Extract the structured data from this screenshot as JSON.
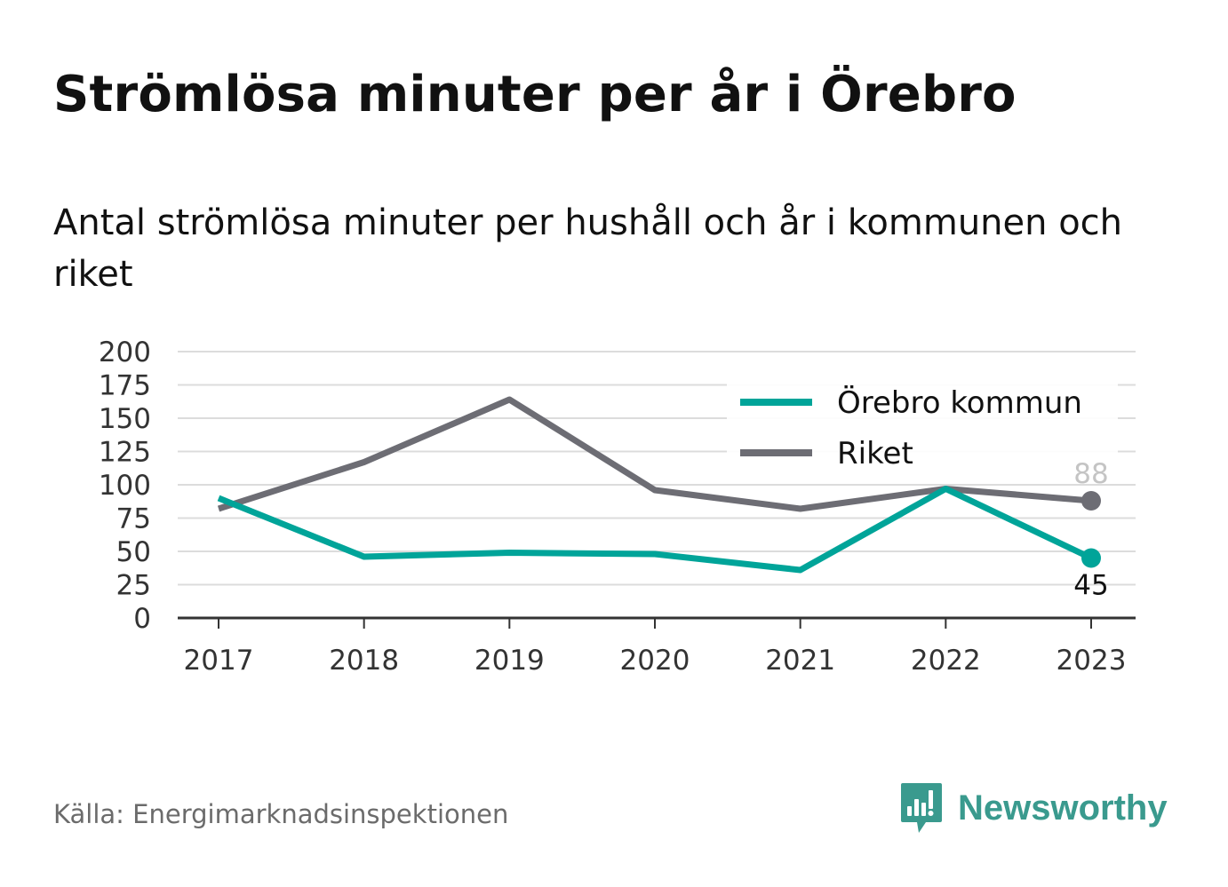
{
  "title": "Strömlösa minuter per år i Örebro",
  "subtitle": "Antal strömlösa minuter per hushåll och år i kommunen och riket",
  "source": "Källa: Energimarknadsinspektionen",
  "brand": {
    "name": "Newsworthy",
    "icon": "newsworthy-logo-icon",
    "color": "#3a9a8e"
  },
  "chart_data": {
    "type": "line",
    "x": [
      "2017",
      "2018",
      "2019",
      "2020",
      "2021",
      "2022",
      "2023"
    ],
    "ylim": [
      0,
      200
    ],
    "yticks": [
      "0",
      "25",
      "50",
      "75",
      "100",
      "125",
      "150",
      "175",
      "200"
    ],
    "grid": true,
    "legend_position": "top-right",
    "series": [
      {
        "name": "Örebro kommun",
        "color": "#00a499",
        "values": [
          90,
          46,
          49,
          48,
          36,
          97,
          45
        ],
        "end_label": "45"
      },
      {
        "name": "Riket",
        "color": "#6d6d74",
        "values": [
          82,
          117,
          164,
          96,
          82,
          97,
          88
        ],
        "end_label": "88"
      }
    ]
  }
}
